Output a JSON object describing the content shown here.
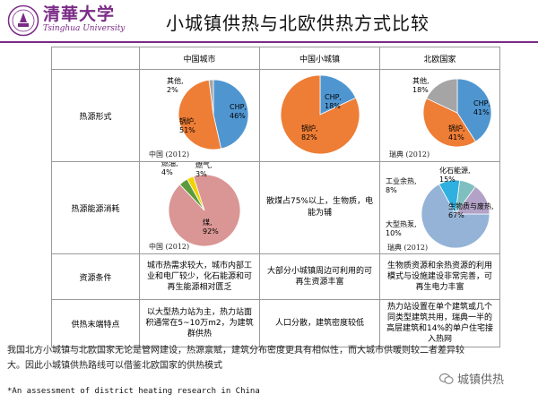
{
  "logo": {
    "cn": "清華大学",
    "en": "Tsinghua University"
  },
  "title": "小城镇供热与北欧供热方式比较",
  "table": {
    "columns": [
      "中国城市",
      "中国小城镇",
      "北欧国家"
    ],
    "rows": {
      "heat_source": "热源形式",
      "energy": "热源能源消耗",
      "resources": "资源条件",
      "terminal": "供热末端特点"
    },
    "resources_text": [
      "城市热需求较大，城市内部工业和电厂较少，化石能源和可再生能源相对匮乏",
      "大部分小城镇周边可利用的可再生资源丰富",
      "生物质资源和余热资源的利用模式与设施建设非常完善，可再生电力丰富"
    ],
    "terminal_text": [
      "以大型热力站为主，热力站面积通常在5~10万m2，为建筑群供热",
      "人口分散，建筑密度较低",
      "热力站设置在单个建筑或几个同类型建筑共用，瑞典一半的高层建筑和14%的单户住宅接入热网"
    ],
    "small_town_energy_text": "散煤占75%以上，生物质，电能为辅"
  },
  "chart_data": [
    {
      "type": "pie",
      "id": "china-city-source",
      "caption": "中国 (2012)",
      "slices": [
        {
          "label": "CHP",
          "value": 46,
          "text": "46%",
          "color": "#4f96d1"
        },
        {
          "label": "锅炉",
          "value": 51,
          "text": "51%",
          "color": "#ee7d35"
        },
        {
          "label": "其他",
          "value": 2,
          "text": "2%",
          "color": "#a5a5a5"
        }
      ]
    },
    {
      "type": "pie",
      "id": "small-town-source",
      "caption": "",
      "slices": [
        {
          "label": "CHP",
          "value": 18,
          "text": "18%",
          "color": "#4f96d1"
        },
        {
          "label": "锅炉",
          "value": 82,
          "text": "82%",
          "color": "#ee7d35"
        }
      ]
    },
    {
      "type": "pie",
      "id": "nordic-source",
      "caption": "瑞典 (2012)",
      "slices": [
        {
          "label": "CHP",
          "value": 41,
          "text": "41%",
          "color": "#4f96d1"
        },
        {
          "label": "锅炉",
          "value": 41,
          "text": "41%",
          "color": "#ee7d35"
        },
        {
          "label": "其他",
          "value": 18,
          "text": "18%",
          "color": "#a5a5a5"
        }
      ]
    },
    {
      "type": "pie",
      "id": "china-city-energy",
      "caption": "中国 (2012)",
      "slices": [
        {
          "label": "煤",
          "value": 92,
          "text": "92%",
          "color": "#d99694"
        },
        {
          "label": "燃油",
          "value": 4,
          "text": "4%",
          "color": "#5b9b3e"
        },
        {
          "label": "燃气",
          "value": 3,
          "text": "3%",
          "color": "#f2d200"
        }
      ]
    },
    {
      "type": "pie",
      "id": "nordic-energy",
      "caption": "瑞典 (2012)",
      "slices": [
        {
          "label": "生物质与废热",
          "value": 67,
          "text": "67%",
          "color": "#95b3d7"
        },
        {
          "label": "大型热泵",
          "value": 10,
          "text": "10%",
          "color": "#2fb0e0"
        },
        {
          "label": "工业余热",
          "value": 8,
          "text": "8%",
          "color": "#7fbfbf"
        },
        {
          "label": "化石能源",
          "value": 15,
          "text": "15%",
          "color": "#b3a2c7"
        }
      ]
    }
  ],
  "note": "我国北方小城镇与北欧国家无论是管网建设，热源禀赋，建筑分布密度更具有相似性，而大城市供暖则较二者差异较大。因此小城镇供热路线可以借鉴北欧国家的供热模式",
  "footnote": "*An assessment of district heating research in China",
  "watermark": "城镇供热"
}
